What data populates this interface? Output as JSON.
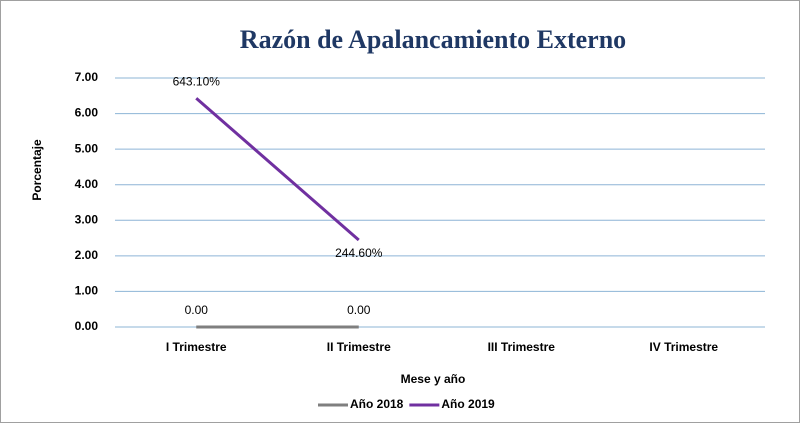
{
  "chart_data": {
    "type": "line",
    "title": "Razón de Apalancamiento Externo",
    "x_label": "Mese y año",
    "y_label": "Porcentaje",
    "categories": [
      "I Trimestre",
      "II Trimestre",
      "III Trimestre",
      "IV Trimestre"
    ],
    "series": [
      {
        "name": "Año 2018",
        "color": "#7f7f7f",
        "values": [
          0,
          0,
          null,
          null
        ],
        "value_labels": [
          "0.00",
          "0.00",
          null,
          null
        ]
      },
      {
        "name": "Año 2019",
        "color": "#7030a0",
        "values": [
          6.431,
          2.446,
          null,
          null
        ],
        "value_labels": [
          "643.10%",
          "244.60%",
          null,
          null
        ]
      }
    ],
    "ylim": [
      0,
      7
    ],
    "yticks": [
      {
        "value": 0,
        "label": "0.00"
      },
      {
        "value": 1,
        "label": "1.00"
      },
      {
        "value": 2,
        "label": "2.00"
      },
      {
        "value": 3,
        "label": "3.00"
      },
      {
        "value": 4,
        "label": "4.00"
      },
      {
        "value": 5,
        "label": "5.00"
      },
      {
        "value": 6,
        "label": "6.00"
      },
      {
        "value": 7,
        "label": "7.00"
      }
    ],
    "grid": true,
    "legend": "bottom"
  }
}
